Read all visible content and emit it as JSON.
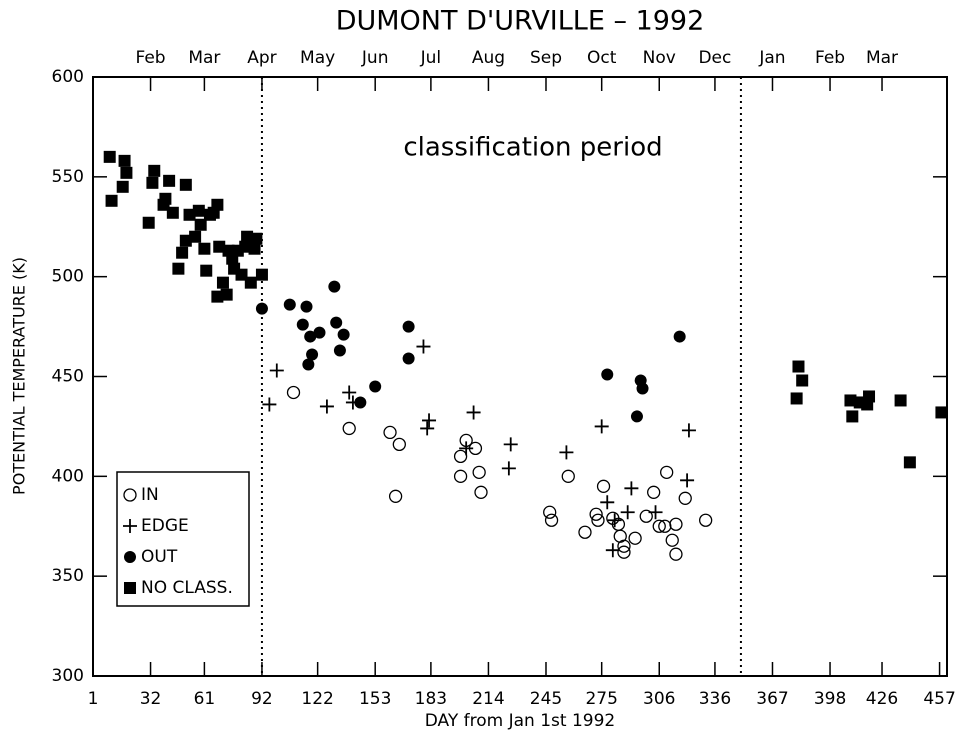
{
  "chart_data": {
    "type": "scatter",
    "title": "DUMONT D'URVILLE –  1992",
    "xlabel": "DAY from Jan 1st 1992",
    "ylabel": "POTENTIAL TEMPERATURE (K)",
    "annotation": "classification period",
    "xlim": [
      1,
      461
    ],
    "ylim": [
      300,
      600
    ],
    "xticks": [
      1,
      32,
      61,
      92,
      122,
      153,
      183,
      214,
      245,
      275,
      306,
      336,
      367,
      398,
      426,
      457
    ],
    "yticks": [
      300,
      350,
      400,
      450,
      500,
      550,
      600
    ],
    "top_ticks": [
      {
        "value": 32,
        "label": "Feb"
      },
      {
        "value": 61,
        "label": "Mar"
      },
      {
        "value": 92,
        "label": "Apr"
      },
      {
        "value": 122,
        "label": "May"
      },
      {
        "value": 153,
        "label": "Jun"
      },
      {
        "value": 183,
        "label": "Jul"
      },
      {
        "value": 214,
        "label": "Aug"
      },
      {
        "value": 245,
        "label": "Sep"
      },
      {
        "value": 275,
        "label": "Oct"
      },
      {
        "value": 306,
        "label": "Nov"
      },
      {
        "value": 336,
        "label": "Dec"
      },
      {
        "value": 367,
        "label": "Jan"
      },
      {
        "value": 398,
        "label": "Feb"
      },
      {
        "value": 426,
        "label": "Mar"
      }
    ],
    "vlines": [
      92,
      350
    ],
    "legend": "lower left",
    "series": [
      {
        "name": "IN",
        "marker": "open-circle",
        "color": "#000000",
        "x": [
          109,
          139,
          161,
          164,
          166,
          199,
          202,
          207,
          209,
          210,
          199,
          247,
          248,
          257,
          266,
          272,
          276,
          273,
          281,
          284,
          285,
          287,
          287,
          293,
          299,
          303,
          306,
          309,
          310,
          313,
          315,
          315,
          320,
          331
        ],
        "values": [
          442,
          424,
          422,
          390,
          416,
          410,
          418,
          414,
          402,
          392,
          400,
          382,
          378,
          400,
          372,
          381,
          395,
          378,
          379,
          376,
          370,
          365,
          362,
          369,
          380,
          392,
          375,
          375,
          402,
          368,
          361,
          376,
          389,
          378
        ]
      },
      {
        "name": "EDGE",
        "marker": "plus",
        "color": "#000000",
        "x": [
          96,
          100,
          127,
          139,
          141,
          181,
          182,
          179,
          202,
          206,
          226,
          225,
          256,
          275,
          278,
          282,
          281,
          291,
          289,
          304,
          321,
          322
        ],
        "values": [
          436,
          453,
          435,
          442,
          437,
          424,
          428,
          465,
          414,
          432,
          416,
          404,
          412,
          425,
          387,
          378,
          363,
          394,
          382,
          382,
          398,
          423
        ]
      },
      {
        "name": "OUT",
        "marker": "circle",
        "color": "#000000",
        "x": [
          92,
          107,
          116,
          114,
          118,
          119,
          117,
          123,
          131,
          132,
          134,
          136,
          145,
          153,
          171,
          171,
          278,
          294,
          296,
          297,
          317
        ],
        "values": [
          484,
          486,
          485,
          476,
          470,
          461,
          456,
          472,
          495,
          477,
          463,
          471,
          437,
          445,
          475,
          459,
          451,
          430,
          448,
          444,
          470
        ]
      },
      {
        "name": "NO CLASS.",
        "marker": "square",
        "color": "#000000",
        "x": [
          10,
          11,
          18,
          17,
          19,
          31,
          34,
          33,
          40,
          39,
          42,
          44,
          51,
          47,
          49,
          51,
          53,
          56,
          58,
          59,
          61,
          62,
          64,
          66,
          68,
          68,
          69,
          71,
          73,
          74,
          76,
          77,
          79,
          81,
          83,
          84,
          86,
          88,
          89,
          92,
          380,
          381,
          383,
          409,
          410,
          414,
          418,
          419,
          436,
          441,
          458
        ],
        "values": [
          560,
          538,
          558,
          545,
          552,
          527,
          553,
          547,
          539,
          536,
          548,
          532,
          546,
          504,
          512,
          518,
          531,
          520,
          533,
          526,
          514,
          503,
          531,
          532,
          490,
          536,
          515,
          497,
          491,
          513,
          509,
          504,
          513,
          501,
          515,
          520,
          497,
          514,
          519,
          501,
          439,
          455,
          448,
          438,
          430,
          437,
          436,
          440,
          438,
          407,
          432
        ]
      }
    ]
  }
}
